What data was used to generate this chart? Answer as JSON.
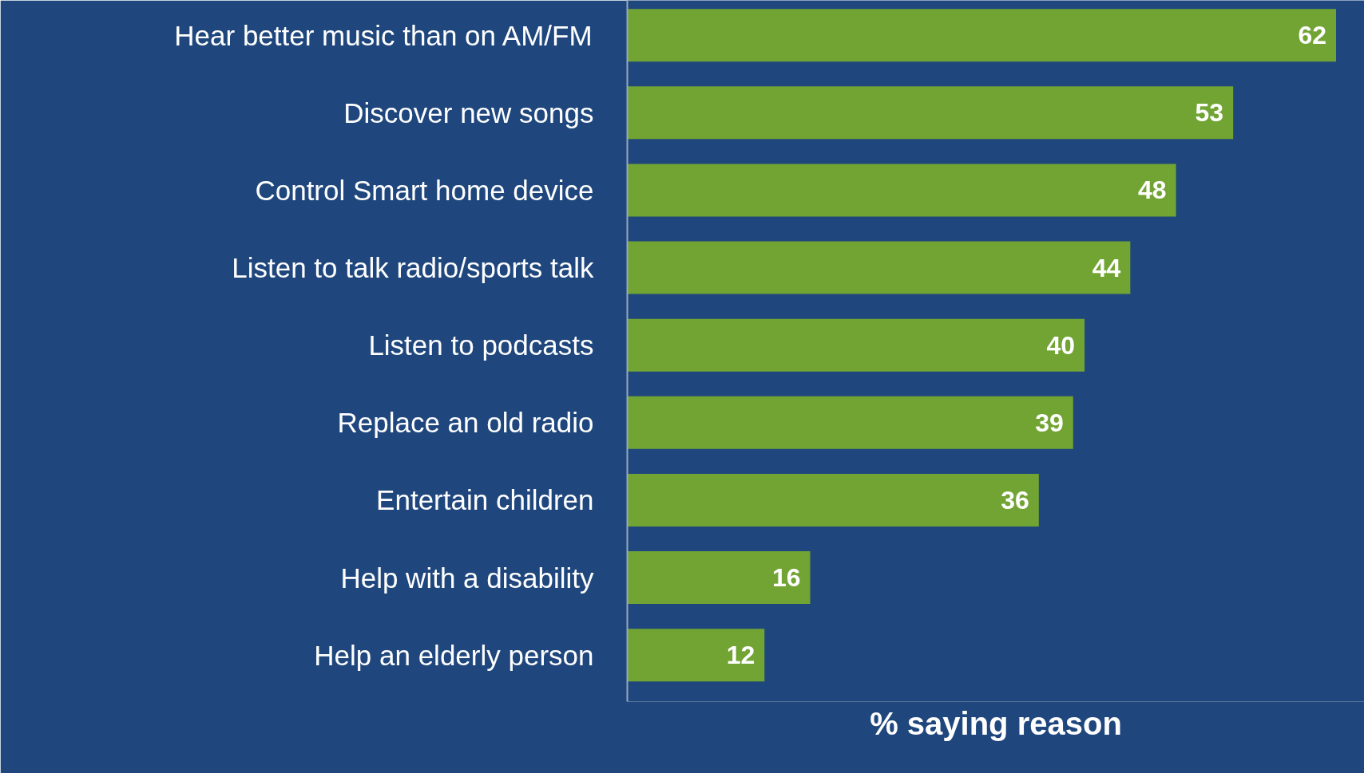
{
  "chart_data": {
    "type": "bar",
    "orientation": "horizontal",
    "xlabel": "% saying reason",
    "categories": [
      "Hear better music than on AM/FM",
      "Discover new songs",
      "Control Smart home device",
      "Listen to talk radio/sports talk",
      "Listen to podcasts",
      "Replace an old radio",
      "Entertain children",
      "Help with a disability",
      "Help an elderly person"
    ],
    "values": [
      62,
      53,
      48,
      44,
      40,
      39,
      36,
      16,
      12
    ],
    "color": "#72a433",
    "data_labels": true
  }
}
